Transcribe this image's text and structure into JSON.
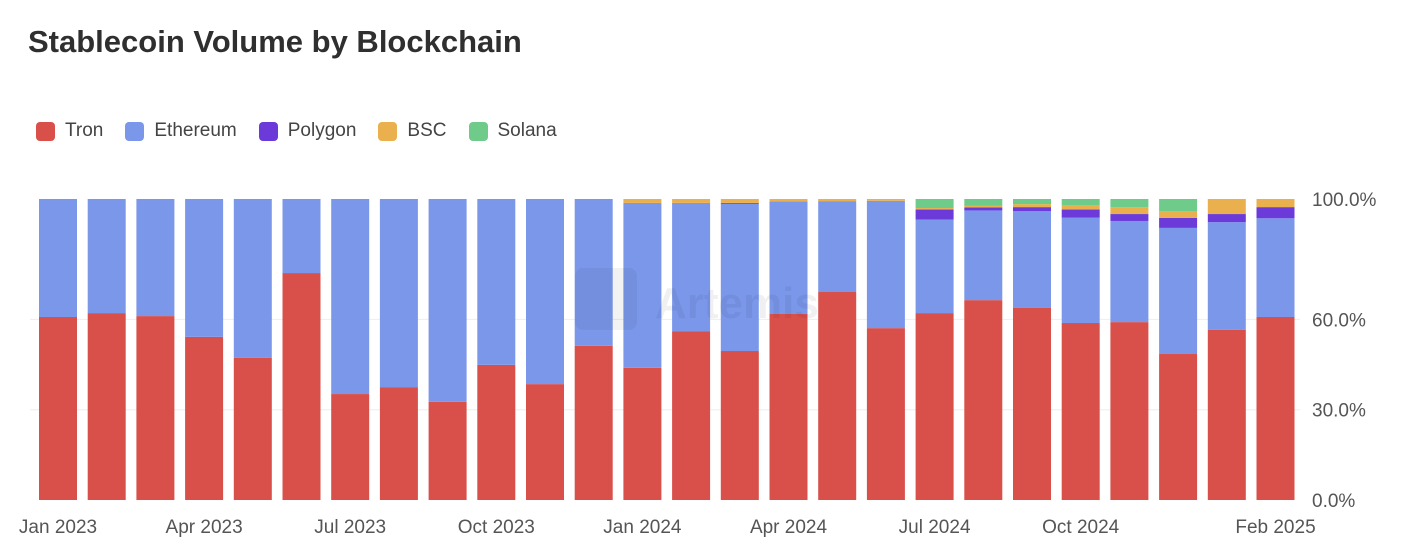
{
  "chart_data": {
    "type": "bar",
    "stacked": true,
    "normalized": true,
    "title": "Stablecoin Volume by Blockchain",
    "watermark": "Artemis",
    "legend_position": "top-left",
    "ylim": [
      0,
      100
    ],
    "y_ticks": [
      {
        "value": 0,
        "label": "0.0%"
      },
      {
        "value": 30,
        "label": "30.0%"
      },
      {
        "value": 60,
        "label": "60.0%"
      },
      {
        "value": 100,
        "label": "100.0%"
      }
    ],
    "y_axis_side": "right",
    "categories": [
      "Jan 2023",
      "Feb 2023",
      "Mar 2023",
      "Apr 2023",
      "May 2023",
      "Jun 2023",
      "Jul 2023",
      "Aug 2023",
      "Sep 2023",
      "Oct 2023",
      "Nov 2023",
      "Dec 2023",
      "Jan 2024",
      "Feb 2024",
      "Mar 2024",
      "Apr 2024",
      "May 2024",
      "Jun 2024",
      "Jul 2024",
      "Aug 2024",
      "Sep 2024",
      "Oct 2024",
      "Nov 2024",
      "Dec 2024",
      "Jan 2025",
      "Feb 2025"
    ],
    "x_tick_labels": [
      {
        "index": 0,
        "label": "Jan 2023"
      },
      {
        "index": 3,
        "label": "Apr 2023"
      },
      {
        "index": 6,
        "label": "Jul 2023"
      },
      {
        "index": 9,
        "label": "Oct 2023"
      },
      {
        "index": 12,
        "label": "Jan 2024"
      },
      {
        "index": 15,
        "label": "Apr 2024"
      },
      {
        "index": 18,
        "label": "Jul 2024"
      },
      {
        "index": 21,
        "label": "Oct 2024"
      },
      {
        "index": 25,
        "label": "Feb 2025"
      }
    ],
    "series": [
      {
        "name": "Tron",
        "color": "#d9504a",
        "values": [
          60.8,
          62.1,
          61.1,
          54.2,
          47.2,
          75.4,
          35.2,
          37.5,
          32.6,
          44.9,
          38.5,
          51.2,
          43.9,
          56.1,
          49.5,
          61.8,
          69.1,
          57.1,
          62.1,
          66.4,
          63.8,
          58.8,
          59.1,
          48.5,
          56.5,
          60.8
        ]
      },
      {
        "name": "Ethereum",
        "color": "#7b97ea",
        "values": [
          39.2,
          37.9,
          38.9,
          45.8,
          52.8,
          24.6,
          64.8,
          62.5,
          67.4,
          55.1,
          61.5,
          48.8,
          54.8,
          42.6,
          48.9,
          37.4,
          30.2,
          42.3,
          31.1,
          29.8,
          32.2,
          35.0,
          33.6,
          41.9,
          35.8,
          32.8
        ]
      },
      {
        "name": "Polygon",
        "color": "#6b3ad9",
        "values": [
          0,
          0,
          0,
          0,
          0,
          0,
          0,
          0,
          0,
          0,
          0,
          0,
          0,
          0,
          0.3,
          0,
          0,
          0,
          3.3,
          1.0,
          1.3,
          2.7,
          2.3,
          3.3,
          2.7,
          3.7
        ]
      },
      {
        "name": "BSC",
        "color": "#eab04e",
        "values": [
          0,
          0,
          0,
          0,
          0,
          0,
          0,
          0,
          0,
          0,
          0,
          0,
          1.3,
          1.3,
          1.3,
          0.8,
          0.7,
          0.6,
          0.5,
          0.5,
          1.0,
          1.5,
          2.3,
          2.3,
          5.0,
          2.7
        ]
      },
      {
        "name": "Solana",
        "color": "#6fcb8a",
        "values": [
          0,
          0,
          0,
          0,
          0,
          0,
          0,
          0,
          0,
          0,
          0,
          0,
          0,
          0,
          0,
          0,
          0,
          0,
          3.0,
          2.3,
          1.7,
          2.0,
          2.7,
          4.0,
          0,
          0
        ]
      }
    ]
  }
}
